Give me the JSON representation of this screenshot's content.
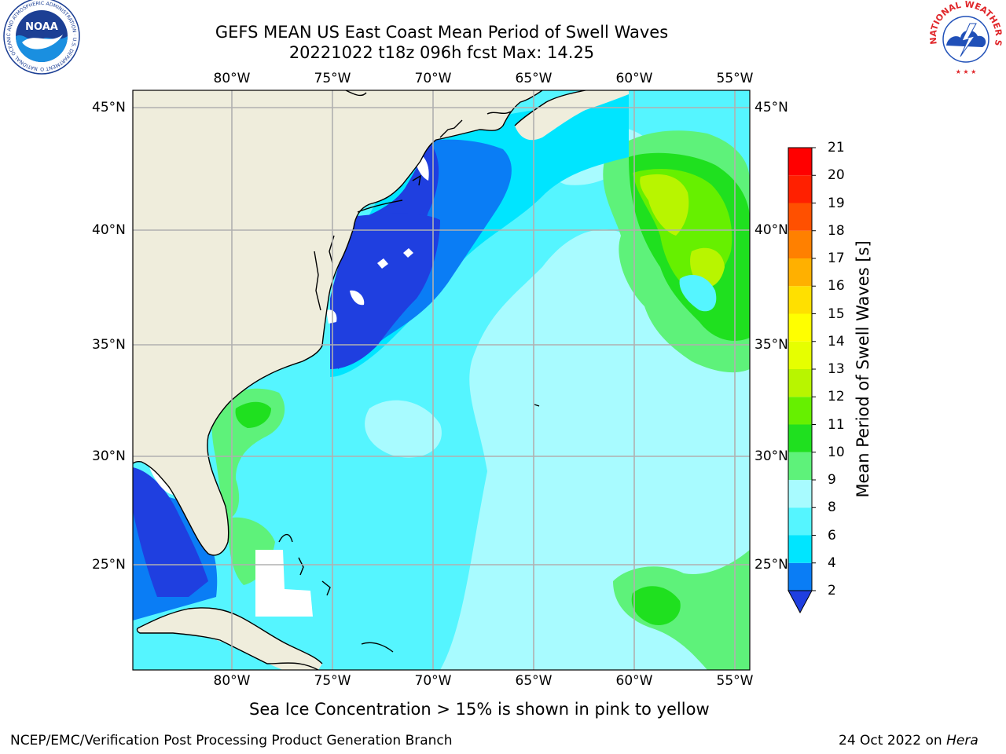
{
  "title": {
    "line1": "GEFS MEAN US East Coast Mean Period of Swell Waves",
    "line2": "20221022 t18z 096h fcst   Max: 14.25"
  },
  "map": {
    "lon_labels": [
      "80°W",
      "75°W",
      "70°W",
      "65°W",
      "60°W",
      "55°W"
    ],
    "lat_labels": [
      "45°N",
      "40°N",
      "35°N",
      "30°N",
      "25°N"
    ],
    "land_color": "#efeddc",
    "coast_color": "#000000",
    "grid_color": "#b0b0b0",
    "extent": {
      "lon_min": -85,
      "lon_max": -54.25,
      "lat_min": 20.3,
      "lat_max": 45.8
    }
  },
  "colorbar": {
    "label": "Mean Period of Swell Waves [s]",
    "ticks": [
      "2",
      "4",
      "6",
      "8",
      "9",
      "10",
      "11",
      "12",
      "13",
      "14",
      "15",
      "16",
      "17",
      "18",
      "19",
      "20",
      "21"
    ],
    "bins": [
      {
        "color": "#1f3fe0",
        "range": "< 2"
      },
      {
        "color": "#0a7df5",
        "range": "2-4"
      },
      {
        "color": "#00e5ff",
        "range": "4-6"
      },
      {
        "color": "#55f5ff",
        "range": "6-8"
      },
      {
        "color": "#a8fbff",
        "range": "8-9"
      },
      {
        "color": "#5ef27a",
        "range": "9-10"
      },
      {
        "color": "#1fe01f",
        "range": "10-11"
      },
      {
        "color": "#66f000",
        "range": "11-12"
      },
      {
        "color": "#b8f500",
        "range": "12-13"
      },
      {
        "color": "#e6ff00",
        "range": "13-14"
      },
      {
        "color": "#ffff00",
        "range": "14-15"
      },
      {
        "color": "#ffe000",
        "range": "15-16"
      },
      {
        "color": "#ffb000",
        "range": "16-17"
      },
      {
        "color": "#ff8000",
        "range": "17-18"
      },
      {
        "color": "#ff5000",
        "range": "18-19"
      },
      {
        "color": "#ff2000",
        "range": "19-20"
      },
      {
        "color": "#ff0000",
        "range": "20-21"
      }
    ]
  },
  "note": "Sea Ice Concentration > 15% is shown in pink to yellow",
  "footer": {
    "left": "NCEP/EMC/Verification Post Processing Product Generation Branch",
    "right_date": "24 Oct 2022 on",
    "right_host": "Hera"
  },
  "logos": {
    "noaa_text": "NOAA",
    "noaa_ring": "NATIONAL OCEANIC AND ATMOSPHERIC ADMINISTRATION · U.S. DEPARTMENT OF COMMERCE",
    "nws_ring": "NATIONAL WEATHER SERVICE"
  }
}
